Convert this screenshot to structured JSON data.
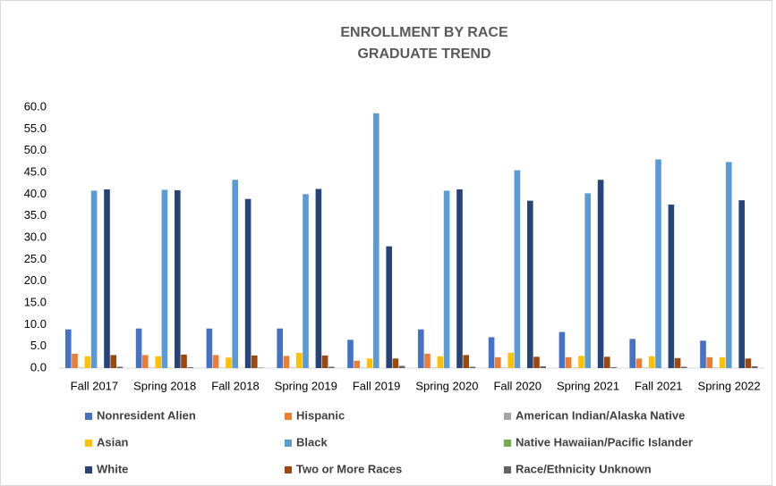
{
  "chart_data": {
    "type": "bar",
    "title": "ENROLLMENT BY RACE",
    "subtitle": "GRADUATE TREND",
    "categories": [
      "Fall 2017",
      "Spring 2018",
      "Fall 2018",
      "Spring 2019",
      "Fall 2019",
      "Spring 2020",
      "Fall 2020",
      "Spring 2021",
      "Fall 2021",
      "Spring 2022"
    ],
    "series": [
      {
        "name": "Nonresident Alien",
        "color": "#4472c4",
        "values": [
          8.9,
          9.1,
          9.1,
          9.1,
          6.5,
          8.9,
          7.1,
          8.3,
          6.7,
          6.3
        ]
      },
      {
        "name": "Hispanic",
        "color": "#ed7d31",
        "values": [
          3.3,
          3.0,
          3.0,
          2.8,
          1.7,
          3.3,
          2.5,
          2.5,
          2.2,
          2.5
        ]
      },
      {
        "name": "American Indian/Alaska Native",
        "color": "#a5a5a5",
        "values": [
          0.1,
          0.1,
          0.1,
          0.1,
          0.1,
          0.1,
          0.1,
          0.1,
          0.1,
          0.1
        ]
      },
      {
        "name": "Asian",
        "color": "#ffc000",
        "values": [
          2.7,
          2.7,
          2.4,
          3.5,
          2.2,
          2.7,
          3.5,
          2.8,
          2.7,
          2.5
        ]
      },
      {
        "name": "Black",
        "color": "#5b9bd5",
        "values": [
          40.8,
          41.0,
          43.3,
          40.0,
          58.6,
          40.8,
          45.5,
          40.2,
          48.0,
          47.4
        ]
      },
      {
        "name": "Native Hawaiian/Pacific Islander",
        "color": "#70ad47",
        "values": [
          0,
          0,
          0,
          0,
          0,
          0,
          0,
          0,
          0,
          0
        ]
      },
      {
        "name": "White",
        "color": "#264478",
        "values": [
          41.1,
          40.9,
          38.9,
          41.2,
          28.0,
          41.1,
          38.5,
          43.3,
          37.6,
          38.6
        ]
      },
      {
        "name": "Two or More Races",
        "color": "#9e480e",
        "values": [
          3.0,
          3.1,
          2.9,
          2.9,
          2.2,
          3.0,
          2.6,
          2.6,
          2.3,
          2.2
        ]
      },
      {
        "name": "Race/Ethnicity Unknown",
        "color": "#636363",
        "values": [
          0.3,
          0.2,
          0.1,
          0.3,
          0.5,
          0.3,
          0.4,
          0.2,
          0.3,
          0.4
        ]
      }
    ],
    "ylim": [
      0,
      60
    ],
    "yticks": [
      {
        "value": 0,
        "label": "0.0"
      },
      {
        "value": 5,
        "label": "5.0"
      },
      {
        "value": 10,
        "label": "10.0"
      },
      {
        "value": 15,
        "label": "15.0"
      },
      {
        "value": 20,
        "label": "20.0"
      },
      {
        "value": 25,
        "label": "25.0"
      },
      {
        "value": 30,
        "label": "30.0"
      },
      {
        "value": 35,
        "label": "35.0"
      },
      {
        "value": 40,
        "label": "40.0"
      },
      {
        "value": 45,
        "label": "45.0"
      },
      {
        "value": 50,
        "label": "50.0"
      },
      {
        "value": 55,
        "label": "55.0"
      },
      {
        "value": 60,
        "label": "60.0"
      }
    ],
    "grid": false,
    "legend": "bottom"
  }
}
